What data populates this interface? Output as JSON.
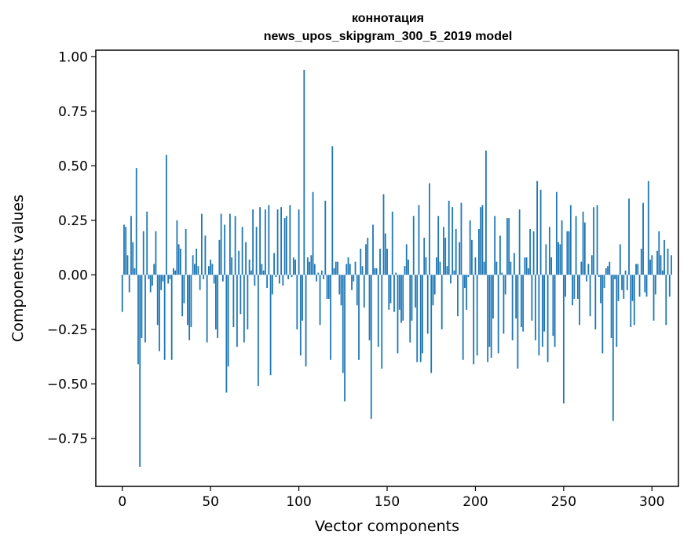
{
  "chart_data": {
    "type": "bar",
    "title": "коннотация",
    "subtitle": "news_upos_skipgram_300_5_2019 model",
    "xlabel": "Vector components",
    "ylabel": "Components values",
    "xlim": [
      -15,
      315
    ],
    "ylim": [
      -0.97,
      1.03
    ],
    "xticks": [
      0,
      50,
      100,
      150,
      200,
      250,
      300
    ],
    "xtick_labels": [
      "0",
      "50",
      "100",
      "150",
      "200",
      "250",
      "300"
    ],
    "yticks": [
      1.0,
      0.75,
      0.5,
      0.25,
      0.0,
      -0.25,
      -0.5,
      -0.75
    ],
    "ytick_labels": [
      "1.00",
      "0.75",
      "0.50",
      "0.25",
      "0.00",
      "−0.25",
      "−0.50",
      "−0.75"
    ],
    "bar_color": "#1f77b4",
    "grid": false,
    "values": [
      -0.17,
      0.23,
      0.22,
      0.09,
      -0.08,
      0.27,
      0.15,
      0.03,
      0.49,
      -0.41,
      -0.88,
      -0.29,
      0.2,
      -0.31,
      0.29,
      -0.02,
      -0.08,
      -0.05,
      0.05,
      0.2,
      -0.23,
      -0.35,
      -0.07,
      -0.03,
      -0.39,
      0.55,
      -0.04,
      -0.02,
      -0.39,
      0.03,
      0.02,
      0.25,
      0.14,
      0.12,
      -0.19,
      -0.13,
      0.21,
      -0.23,
      -0.3,
      -0.24,
      0.09,
      0.05,
      0.12,
      0.04,
      -0.07,
      0.28,
      -0.02,
      0.18,
      -0.31,
      0.04,
      0.07,
      0.05,
      -0.04,
      -0.25,
      -0.29,
      0.16,
      0.28,
      -0.03,
      0.23,
      -0.54,
      -0.42,
      0.28,
      0.08,
      -0.24,
      0.27,
      -0.33,
      0.11,
      -0.18,
      0.22,
      -0.31,
      0.15,
      -0.25,
      0.07,
      0.02,
      0.3,
      -0.05,
      0.22,
      -0.51,
      0.31,
      0.05,
      0.02,
      0.3,
      -0.06,
      0.32,
      -0.46,
      -0.09,
      0.1,
      -0.01,
      0.3,
      -0.04,
      0.31,
      -0.05,
      0.26,
      0.27,
      -0.02,
      0.32,
      -0.01,
      0.08,
      0.07,
      -0.25,
      0.3,
      -0.37,
      -0.21,
      0.94,
      -0.42,
      0.08,
      0.06,
      0.09,
      0.38,
      0.05,
      -0.03,
      0.01,
      -0.23,
      0.02,
      -0.02,
      0.34,
      -0.11,
      -0.11,
      -0.39,
      0.59,
      0.03,
      0.06,
      0.06,
      -0.09,
      -0.14,
      -0.45,
      -0.58,
      0.05,
      0.08,
      0.05,
      -0.07,
      -0.03,
      0.06,
      -0.14,
      -0.39,
      0.12,
      0.04,
      -0.15,
      0.14,
      0.17,
      -0.3,
      -0.66,
      0.23,
      0.03,
      0.03,
      -0.33,
      0.12,
      -0.43,
      0.37,
      0.19,
      0.12,
      -0.16,
      -0.13,
      0.29,
      -0.17,
      0.01,
      -0.36,
      -0.16,
      -0.22,
      -0.21,
      0.04,
      0.14,
      0.07,
      -0.31,
      -0.21,
      0.27,
      -0.15,
      -0.4,
      0.32,
      -0.4,
      -0.36,
      0.17,
      0.08,
      -0.27,
      0.42,
      -0.45,
      -0.14,
      -0.09,
      0.08,
      0.27,
      0.06,
      -0.25,
      0.22,
      0.17,
      0.04,
      0.34,
      -0.04,
      0.31,
      0.02,
      0.21,
      -0.19,
      0.15,
      0.33,
      -0.39,
      -0.06,
      -0.16,
      -0.01,
      0.25,
      0.16,
      -0.41,
      0.08,
      -0.37,
      0.21,
      0.31,
      0.32,
      0.06,
      0.57,
      -0.4,
      -0.33,
      -0.38,
      -0.2,
      0.27,
      0.06,
      -0.36,
      0.18,
      0.01,
      -0.27,
      -0.09,
      0.26,
      0.26,
      0.06,
      -0.3,
      0.1,
      -0.2,
      -0.43,
      0.3,
      -0.24,
      -0.26,
      0.08,
      0.08,
      0.03,
      0.21,
      -0.21,
      0.2,
      -0.3,
      0.43,
      -0.37,
      0.39,
      -0.33,
      -0.26,
      0.14,
      -0.4,
      0.22,
      0.08,
      -0.28,
      -0.33,
      0.38,
      0.15,
      0.14,
      0.25,
      -0.59,
      -0.1,
      0.2,
      0.2,
      0.32,
      -0.14,
      -0.11,
      0.27,
      -0.11,
      -0.23,
      0.06,
      0.29,
      0.24,
      -0.03,
      0.05,
      -0.19,
      0.09,
      0.31,
      -0.25,
      0.32,
      -0.01,
      -0.13,
      -0.36,
      -0.06,
      0.03,
      0.04,
      0.06,
      -0.29,
      -0.67,
      -0.02,
      -0.33,
      -0.12,
      0.14,
      -0.07,
      -0.11,
      0.02,
      -0.07,
      0.35,
      -0.24,
      -0.12,
      -0.23,
      0.05,
      0.05,
      -0.1,
      0.12,
      0.33,
      -0.08,
      -0.1,
      0.43,
      0.07,
      0.09,
      -0.21,
      -0.09,
      0.11,
      0.2,
      0.09,
      0.02,
      0.16,
      -0.23,
      0.12,
      -0.1,
      0.09
    ]
  }
}
